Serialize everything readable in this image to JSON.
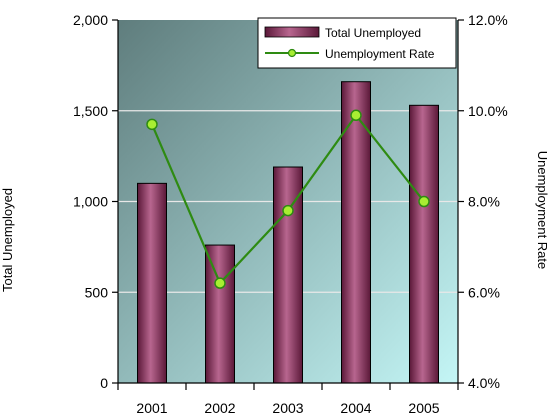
{
  "chart_data": {
    "type": "bar",
    "title": "",
    "categories": [
      "2001",
      "2002",
      "2003",
      "2004",
      "2005"
    ],
    "xlabel": "",
    "series": [
      {
        "name": "Total Unemployed",
        "type": "bar",
        "axis": "left",
        "values": [
          1100,
          760,
          1190,
          1660,
          1530
        ]
      },
      {
        "name": "Unemployment Rate",
        "type": "line",
        "axis": "right",
        "values": [
          9.7,
          6.2,
          7.8,
          9.9,
          8.0
        ]
      }
    ],
    "y_left": {
      "label": "Total Unemployed",
      "ylim": [
        0,
        2000
      ],
      "ticks": [
        0,
        500,
        1000,
        1500,
        2000
      ],
      "tick_labels": [
        "0",
        "500",
        "1,000",
        "1,500",
        "2,000"
      ]
    },
    "y_right": {
      "label": "Unemployment Rate",
      "ylim": [
        4.0,
        12.0
      ],
      "ticks": [
        4,
        6,
        8,
        10,
        12
      ],
      "tick_labels": [
        "4.0%",
        "6.0%",
        "8.0%",
        "10.0%",
        "12.0%"
      ]
    },
    "grid": true,
    "legend": "top-right",
    "colors": {
      "bar": "#8a2f5c",
      "bar_light": "#b8668f",
      "bar_dark": "#5a1838",
      "line": "#2e8b12",
      "marker": "#a8ee32",
      "plot_bg_dark": "#5f7d7d",
      "plot_bg_light": "#c4f6f6"
    }
  }
}
